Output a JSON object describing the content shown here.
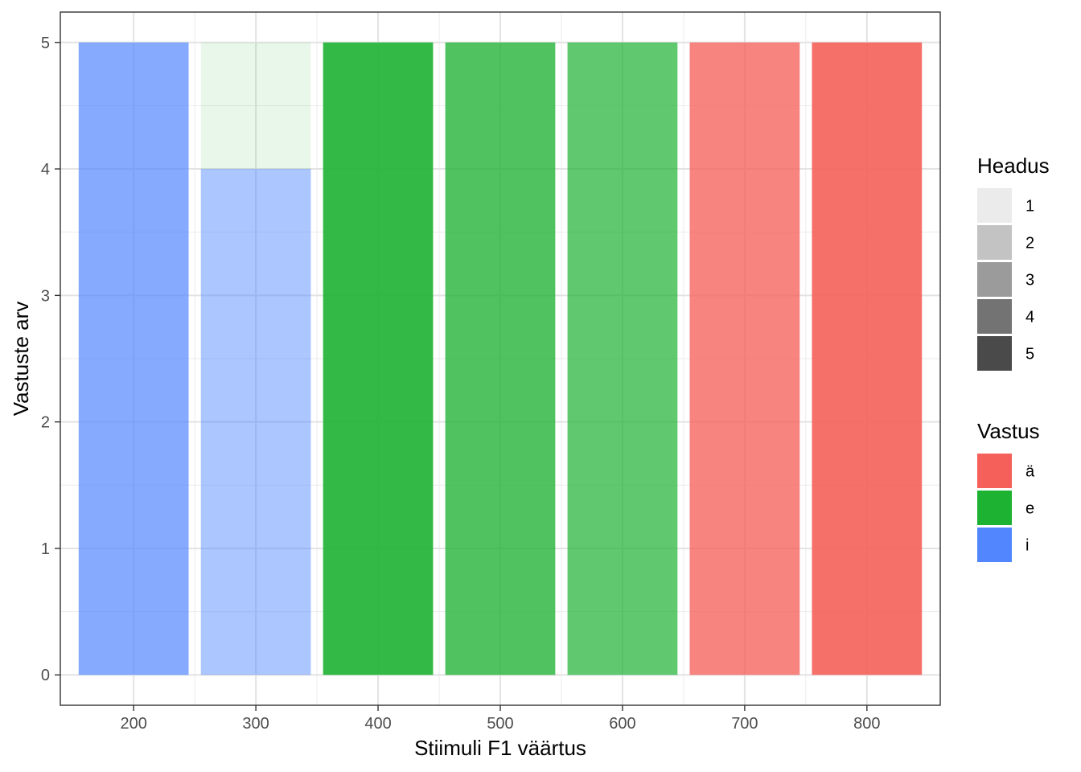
{
  "chart_data": {
    "type": "bar",
    "title": "",
    "xlabel": "Stiimuli F1 väärtus",
    "ylabel": "Vastuste arv",
    "xlim": [
      140,
      860
    ],
    "ylim": [
      -0.24,
      5.24
    ],
    "x_ticks": [
      200,
      300,
      400,
      500,
      600,
      700,
      800
    ],
    "y_ticks": [
      0,
      1,
      2,
      3,
      4,
      5
    ],
    "grid": true,
    "bar_width": 90,
    "bars": [
      {
        "x": 200,
        "response": "i",
        "goodness": 3,
        "count": 5
      },
      {
        "x": 300,
        "response": "i",
        "goodness": 2,
        "count": 4
      },
      {
        "x": 300,
        "response": "e",
        "goodness": 1,
        "count": 1
      },
      {
        "x": 400,
        "response": "e",
        "goodness": 5,
        "count": 5
      },
      {
        "x": 500,
        "response": "e",
        "goodness": 4,
        "count": 5
      },
      {
        "x": 600,
        "response": "e",
        "goodness": 3,
        "count": 5
      },
      {
        "x": 700,
        "response": "ä",
        "goodness": 4,
        "count": 5
      },
      {
        "x": 800,
        "response": "ä",
        "goodness": 5,
        "count": 5
      }
    ],
    "legend": {
      "placement": "right",
      "goodness": {
        "title": "Headus",
        "items": [
          {
            "label": "1",
            "color": "#ebebeb"
          },
          {
            "label": "2",
            "color": "#c3c3c3"
          },
          {
            "label": "3",
            "color": "#9b9b9b"
          },
          {
            "label": "4",
            "color": "#737373"
          },
          {
            "label": "5",
            "color": "#4a4a4a"
          }
        ]
      },
      "response": {
        "title": "Vastus",
        "items": [
          {
            "label": "ä",
            "color": "#f5605a"
          },
          {
            "label": "e",
            "color": "#1db232"
          },
          {
            "label": "i",
            "color": "#5186fe"
          }
        ]
      }
    },
    "response_colors": {
      "ä": "#f5605a",
      "e": "#1db232",
      "i": "#5186fe"
    },
    "goodness_alpha": {
      "1": 0.1,
      "2": 0.475,
      "3": 0.7,
      "4": 0.775,
      "5": 0.9
    }
  }
}
